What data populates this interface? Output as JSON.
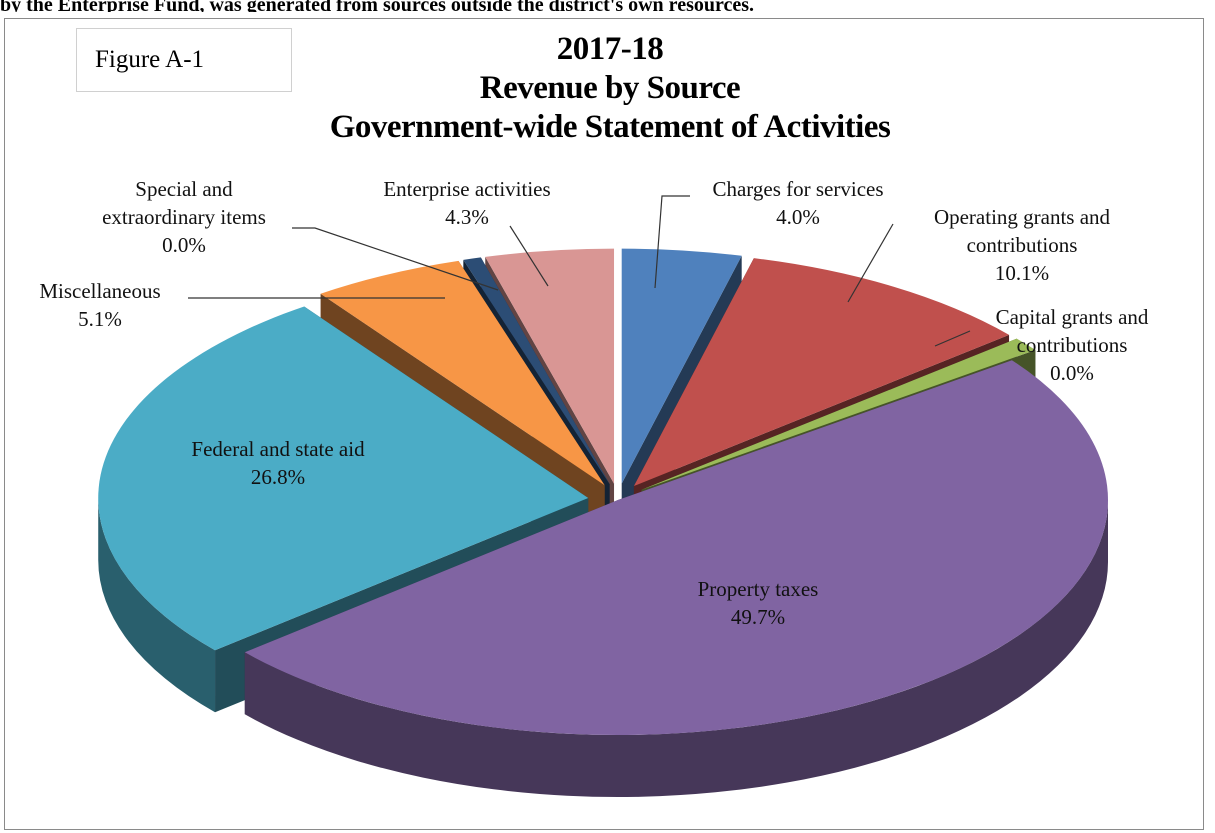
{
  "page": {
    "top_text": "by the Enterprise Fund, was generated from sources outside the district's own resources.",
    "figure_label": "Figure A-1"
  },
  "chart_data": {
    "type": "pie",
    "title_lines": [
      "2017-18",
      "Revenue by Source",
      "Government-wide  Statement of Activities"
    ],
    "slices": [
      {
        "name": "Charges for services",
        "value": 4.0,
        "label": "4.0%",
        "color": "#4f81bd"
      },
      {
        "name": "Operating grants and contributions",
        "value": 10.1,
        "label": "10.1%",
        "color": "#c0504d"
      },
      {
        "name": "Capital grants and contributions",
        "value": 0.0,
        "label": "0.0%",
        "color": "#9bbb59"
      },
      {
        "name": "Property taxes",
        "value": 49.7,
        "label": "49.7%",
        "color": "#8064a2"
      },
      {
        "name": "Federal and state aid",
        "value": 26.8,
        "label": "26.8%",
        "color": "#4bacc6"
      },
      {
        "name": "Miscellaneous",
        "value": 5.1,
        "label": "5.1%",
        "color": "#f79646"
      },
      {
        "name": "Special and extraordinary items",
        "value": 0.0,
        "label": "0.0%",
        "color": "#2c4d75"
      },
      {
        "name": "Enterprise activities",
        "value": 4.3,
        "label": "4.3%",
        "color": "#d99694"
      }
    ],
    "labels": [
      {
        "lines": [
          "Charges for services",
          "4.0%"
        ]
      },
      {
        "lines": [
          "Operating grants and",
          "contributions",
          "10.1%"
        ]
      },
      {
        "lines": [
          "Capital grants and",
          "contributions",
          "0.0%"
        ]
      },
      {
        "lines": [
          "Property taxes",
          "49.7%"
        ]
      },
      {
        "lines": [
          "Federal and state aid",
          "26.8%"
        ]
      },
      {
        "lines": [
          "Miscellaneous",
          "5.1%"
        ]
      },
      {
        "lines": [
          "Special and",
          "extraordinary items",
          "0.0%"
        ]
      },
      {
        "lines": [
          "Enterprise activities",
          "4.3%"
        ]
      }
    ]
  }
}
